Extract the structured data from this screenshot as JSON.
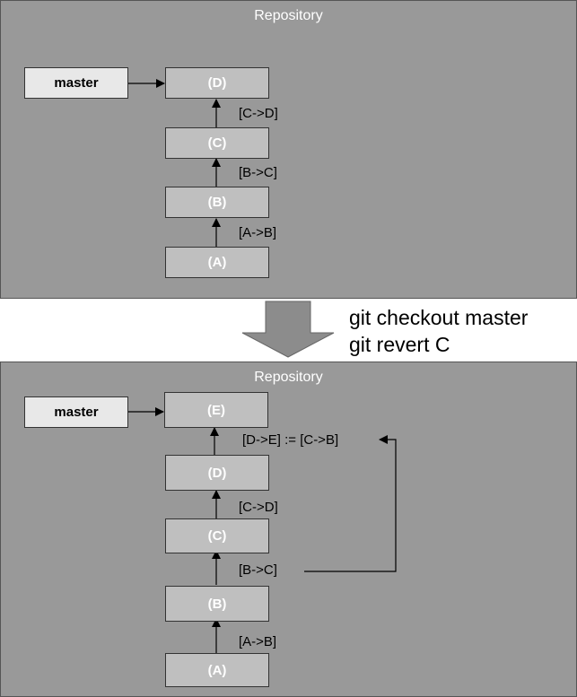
{
  "top": {
    "title": "Repository",
    "branch": "master",
    "commits": [
      "(D)",
      "(C)",
      "(B)",
      "(A)"
    ],
    "edges": [
      "[C->D]",
      "[B->C]",
      "[A->B]"
    ]
  },
  "transition": {
    "commands": [
      "git checkout master",
      "git revert C"
    ]
  },
  "bottom": {
    "title": "Repository",
    "branch": "master",
    "commits": [
      "(E)",
      "(D)",
      "(C)",
      "(B)",
      "(A)"
    ],
    "edges": [
      "[D->E] := [C->B]",
      "[C->D]",
      "[B->C]",
      "[A->B]"
    ]
  },
  "colors": {
    "panel_background": "#999999",
    "commit_fill": "#bfbfbf",
    "branch_fill": "#e8e8e8",
    "transition_arrow": "#8c8c8c"
  }
}
